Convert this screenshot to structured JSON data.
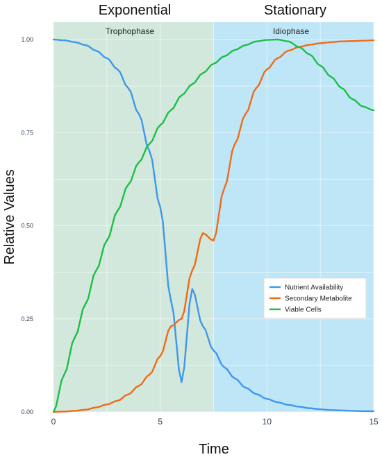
{
  "chart_data": {
    "type": "line",
    "xlabel": "Time",
    "ylabel": "Relative Values",
    "xlim": [
      0,
      15
    ],
    "ylim": [
      0,
      1
    ],
    "xticks": [
      "0",
      "5",
      "10",
      "15"
    ],
    "yticks": [
      "0.00",
      "0.25",
      "0.50",
      "0.75",
      "1.00"
    ],
    "grid": true,
    "legend_position": "bottom-right",
    "regions": [
      {
        "label": "Exponential",
        "sublabel": "Trophophase",
        "x_start": 0,
        "x_end": 7.5,
        "color": "#d2e8dc"
      },
      {
        "label": "Stationary",
        "sublabel": "Idiophase",
        "x_start": 7.5,
        "x_end": 15,
        "color": "#bfe6f7"
      }
    ],
    "x": [
      0,
      0.5,
      1,
      1.5,
      2,
      2.5,
      3,
      3.5,
      4,
      4.5,
      5,
      5.5,
      6,
      6.5,
      7,
      7.5,
      8,
      8.5,
      9,
      9.5,
      10,
      10.5,
      11,
      11.5,
      12,
      12.5,
      13,
      13.5,
      14,
      14.5,
      15
    ],
    "series": [
      {
        "name": "Nutrient Availability",
        "color": "#3d97ec",
        "values": [
          1.0,
          0.998,
          0.993,
          0.985,
          0.97,
          0.95,
          0.92,
          0.87,
          0.8,
          0.7,
          0.55,
          0.3,
          0.08,
          0.33,
          0.23,
          0.165,
          0.12,
          0.09,
          0.065,
          0.048,
          0.035,
          0.026,
          0.019,
          0.014,
          0.01,
          0.007,
          0.005,
          0.004,
          0.003,
          0.002,
          0.002
        ]
      },
      {
        "name": "Secondary Metabolite",
        "color": "#f06a16",
        "values": [
          0.0,
          0.001,
          0.003,
          0.006,
          0.012,
          0.02,
          0.03,
          0.047,
          0.07,
          0.1,
          0.15,
          0.23,
          0.25,
          0.38,
          0.48,
          0.46,
          0.6,
          0.72,
          0.8,
          0.87,
          0.92,
          0.95,
          0.97,
          0.98,
          0.986,
          0.99,
          0.993,
          0.995,
          0.996,
          0.997,
          0.998
        ]
      },
      {
        "name": "Viable Cells",
        "color": "#1cbf46",
        "values": [
          0.0,
          0.1,
          0.2,
          0.29,
          0.38,
          0.46,
          0.54,
          0.61,
          0.67,
          0.72,
          0.77,
          0.81,
          0.85,
          0.88,
          0.91,
          0.935,
          0.955,
          0.972,
          0.985,
          0.995,
          0.999,
          1.0,
          0.995,
          0.98,
          0.96,
          0.93,
          0.9,
          0.87,
          0.84,
          0.82,
          0.81
        ]
      }
    ]
  }
}
